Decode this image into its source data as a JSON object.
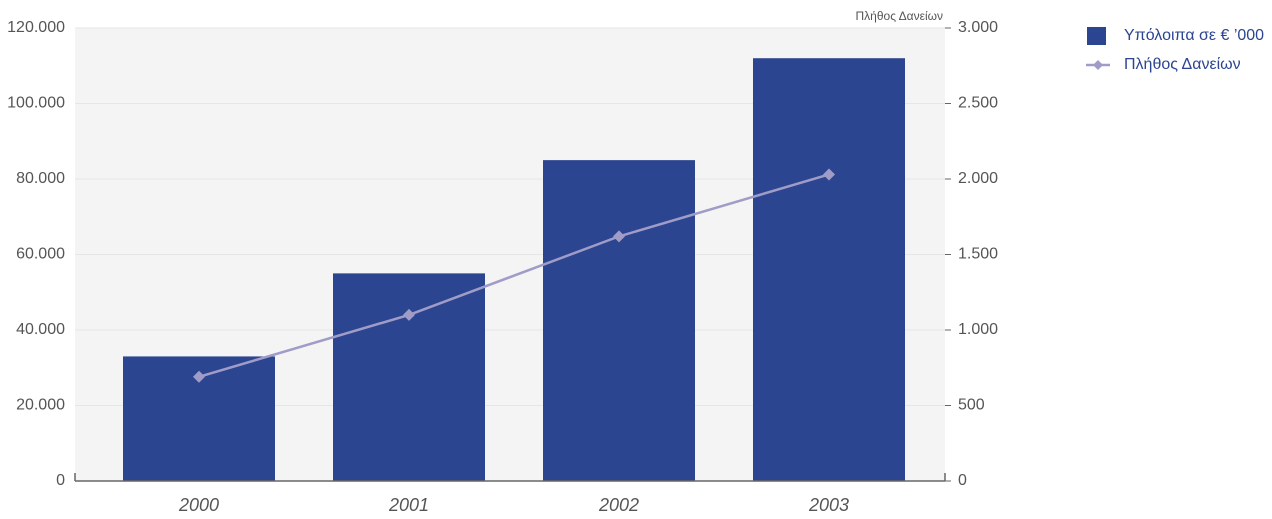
{
  "chart_data": {
    "type": "bar-line",
    "y2_label": "Πλήθος Δανείων",
    "categories": [
      "2000",
      "2001",
      "2002",
      "2003"
    ],
    "series": [
      {
        "name": "Υπόλοιπα σε € ’000",
        "type": "bar",
        "color": "#2c4590",
        "values": [
          33000,
          55000,
          85000,
          112000
        ]
      },
      {
        "name": "Πλήθος Δανείων",
        "type": "line",
        "axis": "y2",
        "color": "#a09cc8",
        "values": [
          690,
          1100,
          1620,
          2030
        ]
      }
    ],
    "ylim": [
      0,
      120000
    ],
    "yticks": [
      0,
      {
        "value": 20000,
        "label": "20.000"
      },
      {
        "value": 40000,
        "label": "40.000"
      },
      {
        "value": 60000,
        "label": "60.000"
      },
      {
        "value": 80000,
        "label": "80.000"
      },
      {
        "value": 100000,
        "label": "100.000"
      },
      {
        "value": 120000,
        "label": "120.000"
      }
    ],
    "y2lim": [
      0,
      3000
    ],
    "y2ticks": [
      0,
      500,
      {
        "value": 1000,
        "label": "1.000"
      },
      {
        "value": 1500,
        "label": "1.500"
      },
      {
        "value": 2000,
        "label": "2.000"
      },
      {
        "value": 2500,
        "label": "2.500"
      },
      {
        "value": 3000,
        "label": "3.000"
      }
    ],
    "grid": true
  }
}
